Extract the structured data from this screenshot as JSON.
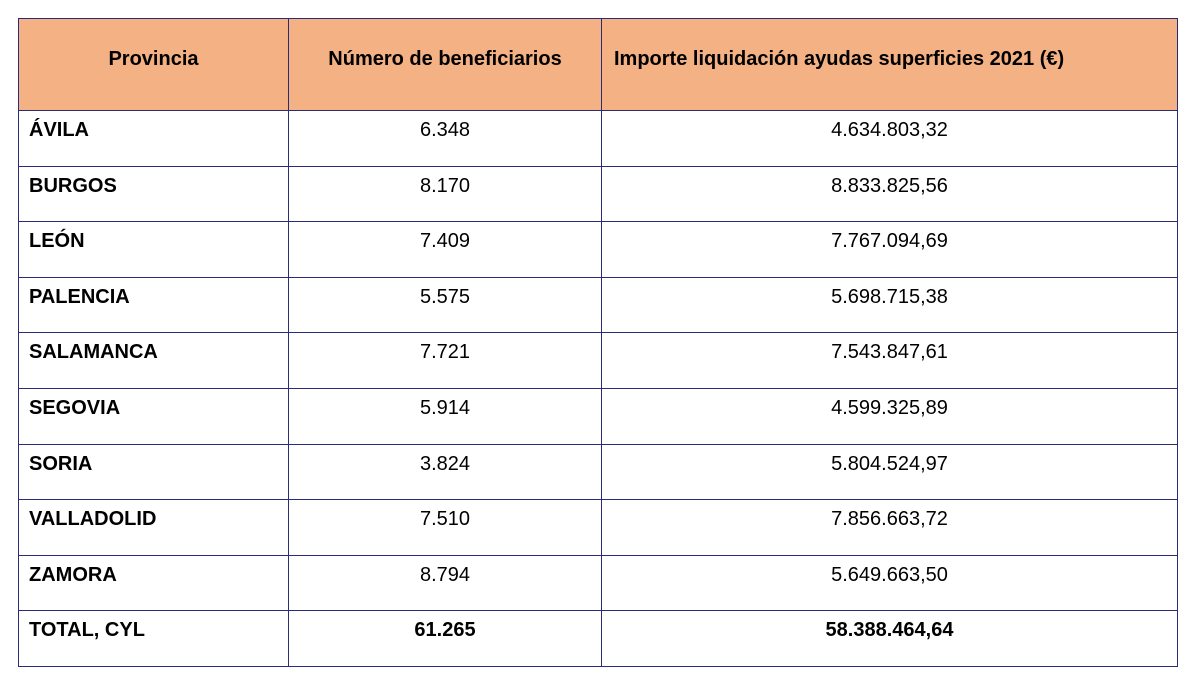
{
  "table": {
    "headers": {
      "provincia": "Provincia",
      "beneficiarios": "Número de beneficiarios",
      "importe": "Importe liquidación ayudas superficies 2021 (€)"
    },
    "rows": [
      {
        "provincia": "ÁVILA",
        "beneficiarios": "6.348",
        "importe": "4.634.803,32"
      },
      {
        "provincia": "BURGOS",
        "beneficiarios": "8.170",
        "importe": "8.833.825,56"
      },
      {
        "provincia": "LEÓN",
        "beneficiarios": "7.409",
        "importe": "7.767.094,69"
      },
      {
        "provincia": "PALENCIA",
        "beneficiarios": "5.575",
        "importe": "5.698.715,38"
      },
      {
        "provincia": "SALAMANCA",
        "beneficiarios": "7.721",
        "importe": "7.543.847,61"
      },
      {
        "provincia": "SEGOVIA",
        "beneficiarios": "5.914",
        "importe": "4.599.325,89"
      },
      {
        "provincia": "SORIA",
        "beneficiarios": "3.824",
        "importe": "5.804.524,97"
      },
      {
        "provincia": "VALLADOLID",
        "beneficiarios": "7.510",
        "importe": "7.856.663,72"
      },
      {
        "provincia": "ZAMORA",
        "beneficiarios": "8.794",
        "importe": "5.649.663,50"
      }
    ],
    "total": {
      "provincia": "TOTAL, CYL",
      "beneficiarios": "61.265",
      "importe": "58.388.464,64"
    },
    "colors": {
      "header_bg": "#f4b183",
      "border": "#2b2b7a"
    }
  }
}
